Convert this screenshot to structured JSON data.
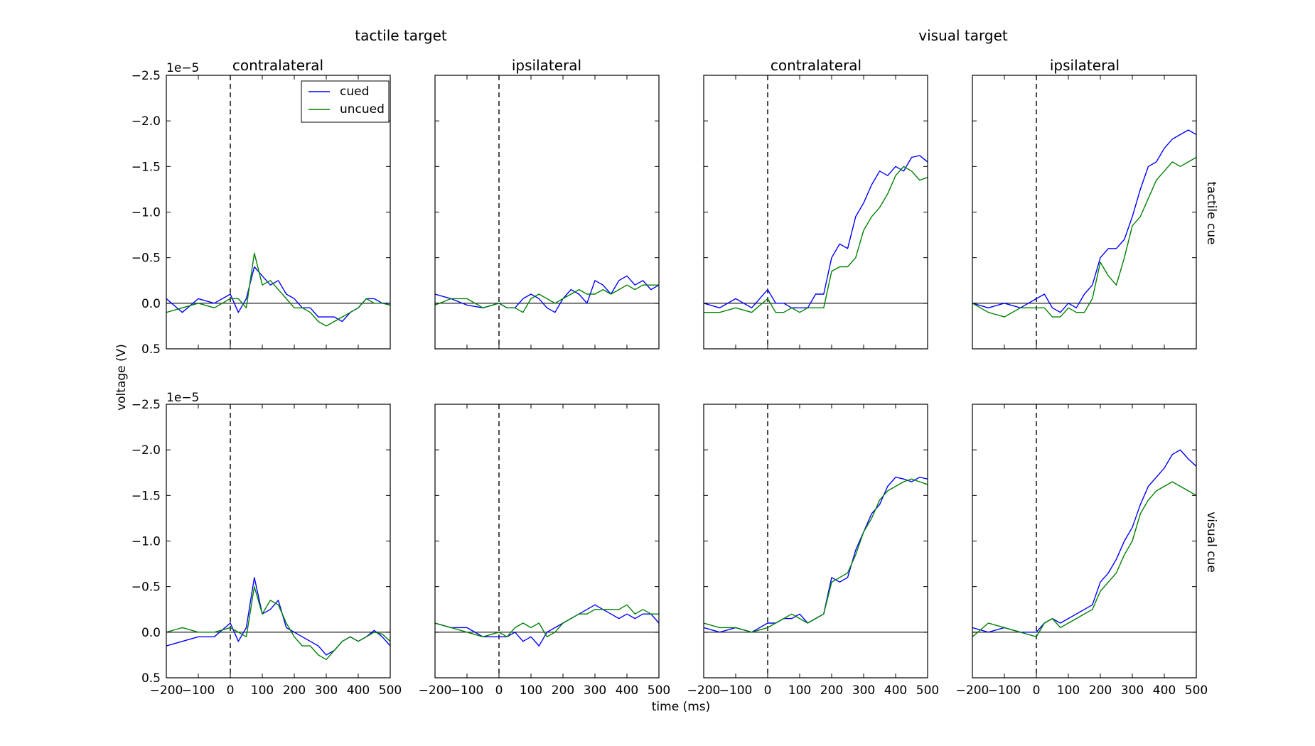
{
  "chart_data": {
    "type": "line",
    "group_titles": [
      "tactile target",
      "visual target"
    ],
    "column_titles": [
      "contralateral",
      "ipsilateral",
      "contralateral",
      "ipsilateral"
    ],
    "row_labels": [
      "tactile cue",
      "visual cue"
    ],
    "xlabel": "time (ms)",
    "ylabel": "voltage (V)",
    "y_offset_text": "1e−5",
    "xlim": [
      -200,
      500
    ],
    "ylim": [
      0.5,
      -2.5
    ],
    "y_inverted": true,
    "x_ticks": [
      -200,
      -100,
      0,
      100,
      200,
      300,
      400,
      500
    ],
    "x_tick_labels": [
      "−200",
      "−100",
      "0",
      "100",
      "200",
      "300",
      "400",
      "500"
    ],
    "y_ticks": [
      -2.5,
      -2.0,
      -1.5,
      -1.0,
      -0.5,
      0.0,
      0.5
    ],
    "y_tick_labels": [
      "−2.5",
      "−2.0",
      "−1.5",
      "−1.0",
      "−0.5",
      "0.0",
      "0.5"
    ],
    "reference_lines": {
      "vertical_dashed_x": 0,
      "horizontal_y": 0
    },
    "legend": {
      "placement": "upper-right of first panel",
      "entries": [
        "cued",
        "uncued"
      ]
    },
    "series_colors": {
      "cued": "#0000ff",
      "uncued": "#008000"
    },
    "x": [
      -200,
      -150,
      -100,
      -50,
      0,
      25,
      50,
      75,
      100,
      125,
      150,
      175,
      200,
      225,
      250,
      275,
      300,
      325,
      350,
      375,
      400,
      425,
      450,
      475,
      500
    ],
    "panels": [
      {
        "row": 0,
        "col": 0,
        "series": [
          {
            "name": "cued",
            "values": [
              -0.05,
              0.1,
              -0.05,
              0.0,
              -0.1,
              0.1,
              -0.05,
              -0.4,
              -0.3,
              -0.2,
              -0.25,
              -0.1,
              -0.05,
              0.05,
              0.05,
              0.15,
              0.15,
              0.15,
              0.2,
              0.1,
              0.05,
              -0.05,
              -0.05,
              0.0,
              0.0
            ]
          },
          {
            "name": "uncued",
            "values": [
              0.1,
              0.05,
              0.0,
              0.05,
              -0.05,
              -0.05,
              0.05,
              -0.55,
              -0.2,
              -0.25,
              -0.15,
              -0.05,
              0.05,
              0.05,
              0.1,
              0.2,
              0.25,
              0.2,
              0.15,
              0.1,
              0.05,
              -0.05,
              0.0,
              0.0,
              0.02
            ]
          }
        ]
      },
      {
        "row": 0,
        "col": 1,
        "series": [
          {
            "name": "cued",
            "values": [
              -0.1,
              -0.05,
              0.02,
              0.05,
              0.0,
              0.05,
              0.05,
              -0.05,
              -0.1,
              -0.05,
              0.05,
              0.1,
              -0.05,
              -0.15,
              -0.1,
              0.0,
              -0.25,
              -0.2,
              -0.1,
              -0.25,
              -0.3,
              -0.2,
              -0.25,
              -0.15,
              -0.2
            ]
          },
          {
            "name": "uncued",
            "values": [
              0.02,
              -0.05,
              -0.05,
              0.05,
              0.0,
              0.05,
              0.05,
              0.1,
              -0.05,
              -0.1,
              -0.05,
              0.0,
              -0.05,
              -0.1,
              -0.15,
              -0.1,
              -0.1,
              -0.15,
              -0.1,
              -0.15,
              -0.2,
              -0.15,
              -0.2,
              -0.2,
              -0.2
            ]
          }
        ]
      },
      {
        "row": 0,
        "col": 2,
        "series": [
          {
            "name": "cued",
            "values": [
              0.0,
              0.05,
              -0.05,
              0.05,
              -0.15,
              0.0,
              0.0,
              0.05,
              0.05,
              0.05,
              -0.1,
              -0.1,
              -0.5,
              -0.65,
              -0.6,
              -0.95,
              -1.1,
              -1.3,
              -1.45,
              -1.4,
              -1.5,
              -1.45,
              -1.6,
              -1.62,
              -1.55
            ]
          },
          {
            "name": "uncued",
            "values": [
              0.1,
              0.1,
              0.05,
              0.1,
              -0.05,
              0.1,
              0.1,
              0.05,
              0.1,
              0.05,
              0.05,
              0.05,
              -0.35,
              -0.4,
              -0.4,
              -0.5,
              -0.8,
              -0.95,
              -1.05,
              -1.2,
              -1.4,
              -1.5,
              -1.45,
              -1.35,
              -1.38
            ]
          }
        ]
      },
      {
        "row": 0,
        "col": 3,
        "series": [
          {
            "name": "cued",
            "values": [
              0.0,
              0.05,
              0.0,
              0.05,
              -0.05,
              -0.1,
              0.05,
              0.1,
              0.0,
              0.05,
              -0.1,
              -0.2,
              -0.5,
              -0.6,
              -0.6,
              -0.7,
              -0.95,
              -1.25,
              -1.5,
              -1.55,
              -1.7,
              -1.8,
              -1.85,
              -1.9,
              -1.85
            ]
          },
          {
            "name": "uncued",
            "values": [
              0.0,
              0.1,
              0.15,
              0.05,
              0.05,
              0.05,
              0.15,
              0.15,
              0.05,
              0.1,
              0.1,
              -0.05,
              -0.45,
              -0.3,
              -0.2,
              -0.5,
              -0.85,
              -0.95,
              -1.15,
              -1.35,
              -1.45,
              -1.55,
              -1.5,
              -1.55,
              -1.6
            ]
          }
        ]
      },
      {
        "row": 1,
        "col": 0,
        "series": [
          {
            "name": "cued",
            "values": [
              0.15,
              0.1,
              0.05,
              0.05,
              -0.1,
              0.1,
              -0.05,
              -0.6,
              -0.2,
              -0.25,
              -0.35,
              -0.05,
              0.0,
              0.05,
              0.1,
              0.15,
              0.25,
              0.2,
              0.1,
              0.05,
              0.1,
              0.05,
              -0.02,
              0.05,
              0.15
            ]
          },
          {
            "name": "uncued",
            "values": [
              0.0,
              -0.05,
              0.0,
              0.0,
              -0.05,
              0.0,
              0.05,
              -0.5,
              -0.2,
              -0.35,
              -0.3,
              -0.1,
              0.05,
              0.15,
              0.15,
              0.25,
              0.3,
              0.2,
              0.1,
              0.05,
              0.1,
              0.05,
              0.0,
              0.02,
              0.1
            ]
          }
        ]
      },
      {
        "row": 1,
        "col": 1,
        "series": [
          {
            "name": "cued",
            "values": [
              -0.1,
              -0.05,
              -0.05,
              0.05,
              0.05,
              0.05,
              0.0,
              0.1,
              0.05,
              0.15,
              0.0,
              -0.05,
              -0.1,
              -0.15,
              -0.2,
              -0.25,
              -0.3,
              -0.25,
              -0.2,
              -0.15,
              -0.2,
              -0.15,
              -0.2,
              -0.2,
              -0.1
            ]
          },
          {
            "name": "uncued",
            "values": [
              -0.1,
              -0.05,
              0.0,
              0.05,
              0.0,
              0.05,
              -0.05,
              -0.1,
              -0.05,
              -0.1,
              0.05,
              0.0,
              -0.1,
              -0.15,
              -0.2,
              -0.2,
              -0.25,
              -0.25,
              -0.25,
              -0.25,
              -0.3,
              -0.2,
              -0.25,
              -0.2,
              -0.2
            ]
          }
        ]
      },
      {
        "row": 1,
        "col": 2,
        "series": [
          {
            "name": "cued",
            "values": [
              -0.05,
              0.0,
              -0.05,
              0.0,
              -0.1,
              -0.1,
              -0.15,
              -0.15,
              -0.2,
              -0.1,
              -0.15,
              -0.2,
              -0.6,
              -0.55,
              -0.6,
              -0.9,
              -1.1,
              -1.3,
              -1.4,
              -1.6,
              -1.7,
              -1.68,
              -1.65,
              -1.7,
              -1.68
            ]
          },
          {
            "name": "uncued",
            "values": [
              -0.1,
              -0.05,
              -0.05,
              0.0,
              -0.05,
              -0.1,
              -0.15,
              -0.2,
              -0.15,
              -0.1,
              -0.15,
              -0.2,
              -0.55,
              -0.6,
              -0.65,
              -0.85,
              -1.1,
              -1.25,
              -1.45,
              -1.55,
              -1.6,
              -1.65,
              -1.68,
              -1.65,
              -1.62
            ]
          }
        ]
      },
      {
        "row": 1,
        "col": 3,
        "series": [
          {
            "name": "cued",
            "values": [
              -0.05,
              0.0,
              -0.05,
              0.0,
              0.0,
              -0.1,
              -0.15,
              -0.1,
              -0.15,
              -0.2,
              -0.25,
              -0.3,
              -0.55,
              -0.65,
              -0.8,
              -1.0,
              -1.15,
              -1.4,
              -1.6,
              -1.7,
              -1.8,
              -1.95,
              -2.0,
              -1.9,
              -1.82
            ]
          },
          {
            "name": "uncued",
            "values": [
              0.05,
              -0.1,
              -0.05,
              0.0,
              0.05,
              -0.1,
              -0.15,
              -0.05,
              -0.1,
              -0.15,
              -0.2,
              -0.25,
              -0.45,
              -0.55,
              -0.65,
              -0.85,
              -1.0,
              -1.3,
              -1.45,
              -1.55,
              -1.6,
              -1.65,
              -1.6,
              -1.55,
              -1.5
            ]
          }
        ]
      }
    ]
  }
}
